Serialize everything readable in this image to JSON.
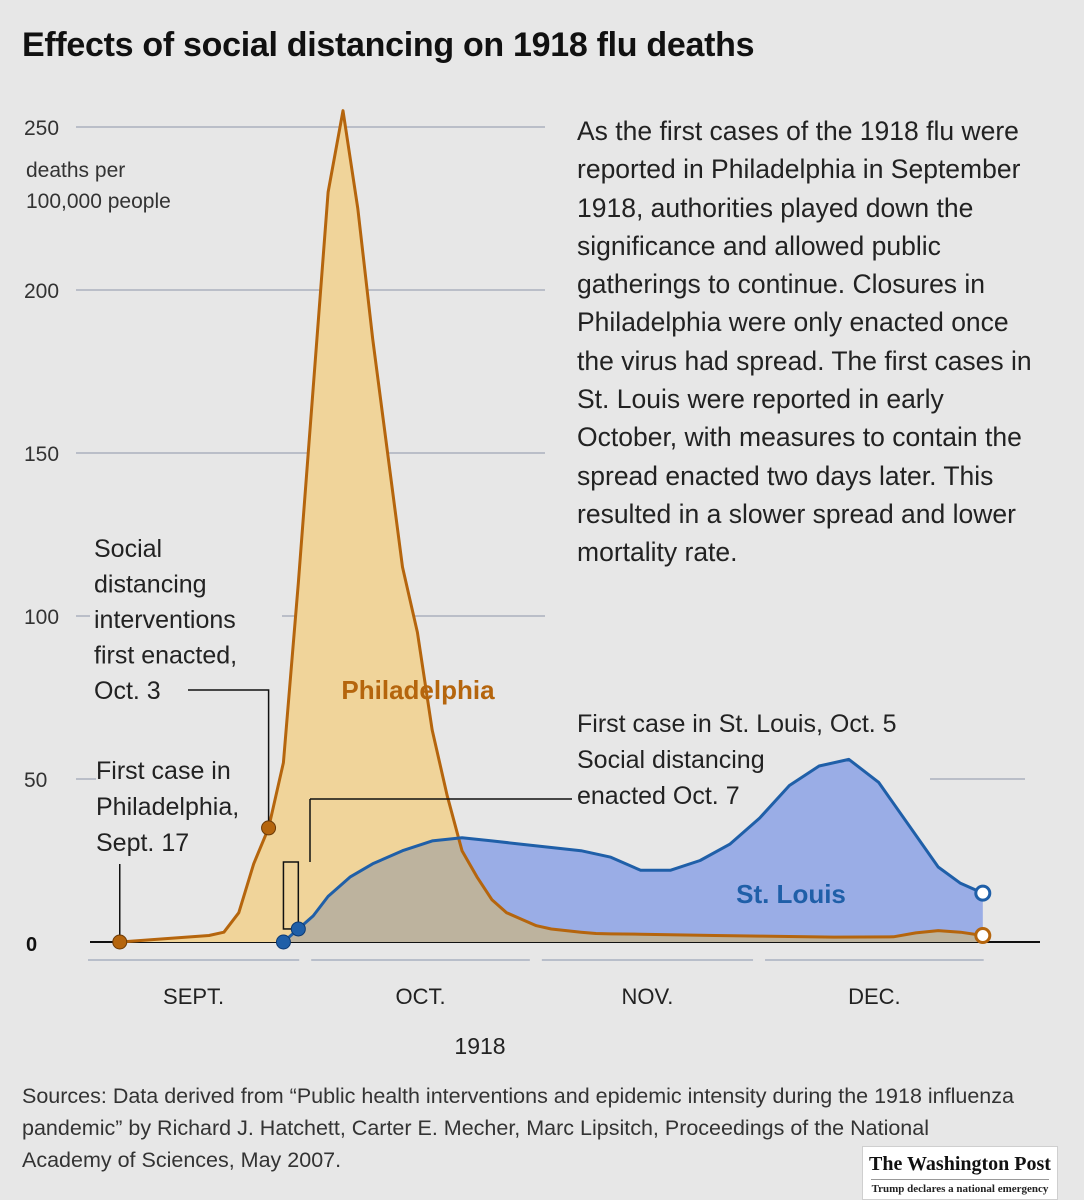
{
  "title": "Effects of social distancing on 1918 flu deaths",
  "description": "As the first cases of the 1918 flu were reported in Philadelphia in September 1918, authorities played down the significance and allowed public gatherings to continue. Closures in Philadelphia were only enacted once the virus had spread. The first cases in St. Louis were reported in early October, with measures to contain the spread enacted two days later. This resulted in a slower spread and lower mortality rate.",
  "sources": "Sources: Data derived from “Public health interventions and epidemic intensity during the 1918 influenza pandemic” by Richard J. Hatchett, Carter E. Mecher, Marc Lipsitch, Proceedings of the National Academy of Sciences, May 2007.",
  "publisher": {
    "name": "The Washington Post",
    "headline": "Trump declares a national emergency"
  },
  "colors": {
    "philadelphia_line": "#b5650d",
    "philadelphia_fill": "#f0d49a",
    "stlouis_line": "#1f5fa8",
    "stlouis_fill": "#9aade6",
    "overlap_fill": "#bdb39e",
    "grid": "#8e96a8"
  },
  "chart_data": {
    "type": "area",
    "title": "Effects of social distancing on 1918 flu deaths",
    "ylabel": "deaths per 100,000 people",
    "xlabel": "1918",
    "ylim": [
      0,
      255
    ],
    "y_ticks": [
      0,
      50,
      100,
      150,
      200,
      250
    ],
    "x_unit": "days since Sept. 1, 1918",
    "xlim": [
      0,
      122
    ],
    "months": [
      {
        "label": "SEPT.",
        "start": 0,
        "end": 30
      },
      {
        "label": "OCT.",
        "start": 30,
        "end": 61
      },
      {
        "label": "NOV.",
        "start": 61,
        "end": 91
      },
      {
        "label": "DEC.",
        "start": 91,
        "end": 122
      }
    ],
    "series": [
      {
        "name": "Philadelphia",
        "x": [
          4,
          10,
          16,
          18,
          20,
          22,
          24,
          26,
          28,
          30,
          32,
          34,
          36,
          38,
          40,
          42,
          44,
          46,
          48,
          50,
          52,
          54,
          56,
          58,
          60,
          62,
          64,
          66,
          68,
          70,
          74,
          78,
          84,
          90,
          100,
          108,
          111,
          114,
          117,
          120
        ],
        "values": [
          0,
          1,
          2,
          3,
          9,
          24,
          35,
          55,
          110,
          170,
          230,
          255,
          225,
          185,
          150,
          115,
          95,
          65,
          45,
          28,
          20,
          13,
          9,
          7,
          5,
          4,
          3.5,
          3,
          2.6,
          2.5,
          2.4,
          2.2,
          2,
          1.8,
          1.5,
          1.6,
          2.8,
          3.5,
          3,
          2
        ]
      },
      {
        "name": "St. Louis",
        "x": [
          26,
          28,
          30,
          32,
          35,
          38,
          42,
          46,
          50,
          54,
          58,
          62,
          66,
          70,
          74,
          78,
          82,
          86,
          90,
          94,
          98,
          102,
          106,
          110,
          114,
          117,
          120
        ],
        "values": [
          0,
          4,
          8,
          14,
          20,
          24,
          28,
          31,
          32,
          31,
          30,
          29,
          28,
          26,
          22,
          22,
          25,
          30,
          38,
          48,
          54,
          56,
          49,
          36,
          23,
          18,
          15
        ]
      }
    ],
    "labels": {
      "philadelphia": "Philadelphia",
      "stlouis": "St. Louis",
      "y_unit_line1": "deaths per",
      "y_unit_line2": "100,000 people",
      "year": "1918"
    },
    "annotations": [
      {
        "id": "phila_first",
        "lines": [
          "First case in",
          "Philadelphia,",
          "Sept. 17"
        ],
        "series": "Philadelphia",
        "x": 4,
        "y": 0
      },
      {
        "id": "phila_distancing",
        "lines": [
          "Social",
          "distancing",
          "interventions",
          "first enacted,",
          "Oct. 3"
        ],
        "series": "Philadelphia",
        "x": 24,
        "y": 35
      },
      {
        "id": "stl_first",
        "lines": [
          "First case in St. Louis, Oct. 5",
          "Social distancing",
          "enacted Oct. 7"
        ],
        "series": "St. Louis",
        "x": 26,
        "y": 0,
        "x2": 28,
        "y2": 4
      }
    ]
  }
}
